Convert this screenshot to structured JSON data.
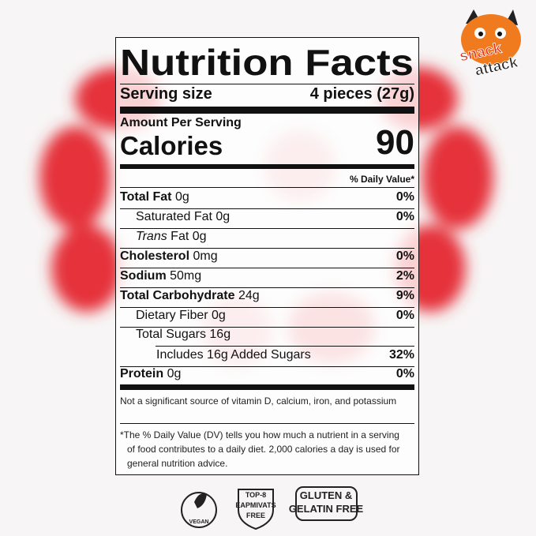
{
  "brand": {
    "line1": "snack",
    "line2": "attack"
  },
  "label": {
    "title": "Nutrition Facts",
    "serving_size": {
      "label": "Serving size",
      "value": "4 pieces (27g)"
    },
    "amount_per_serving": "Amount Per Serving",
    "calories": {
      "label": "Calories",
      "value": 90
    },
    "daily_value_header": "% Daily Value*",
    "rows": [
      {
        "name": "Total Fat",
        "amount": "0g",
        "dv": "0%"
      },
      {
        "name": "Saturated Fat",
        "amount": "0g",
        "dv": "0%"
      },
      {
        "prefix": "Trans",
        "name": "Fat",
        "amount": "0g"
      },
      {
        "name": "Cholesterol",
        "amount": "0mg",
        "dv": "0%"
      },
      {
        "name": "Sodium",
        "amount": "50mg",
        "dv": "2%"
      },
      {
        "name": "Total Carbohydrate",
        "amount": "24g",
        "dv": "9%"
      },
      {
        "name": "Dietary Fiber",
        "amount": "0g",
        "dv": "0%"
      },
      {
        "name": "Total Sugars",
        "amount": "16g"
      },
      {
        "name": "Includes 16g Added Sugars",
        "dv": "32%"
      },
      {
        "name": "Protein",
        "amount": "0g",
        "dv": "0%"
      }
    ],
    "note": "Not a significant source of vitamin D, calcium, iron, and potassium",
    "footnote": "*The % Daily Value (DV) tells you how much a nutrient in a serving of food contributes to a daily diet. 2,000 calories a day is used for general nutrition advice."
  },
  "badges": [
    {
      "lines": [
        "VEGAN"
      ]
    },
    {
      "lines": [
        "TOP-8",
        "EAPMIVATS",
        "FREE"
      ]
    },
    {
      "lines": [
        "GLUTEN &",
        "GELATIN FREE"
      ]
    }
  ]
}
